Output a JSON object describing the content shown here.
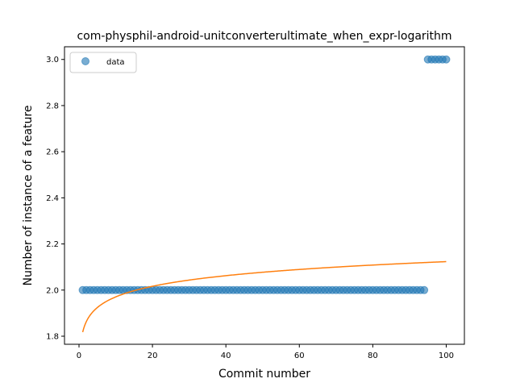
{
  "chart_data": {
    "type": "scatter",
    "title": "com-physphil-android-unitconverterultimate_when_expr-logarithm",
    "xlabel": "Commit number",
    "ylabel": "Number of instance of a feature",
    "xlim": [
      -3.95,
      104.95
    ],
    "ylim": [
      1.765,
      3.055
    ],
    "xticks": [
      0,
      20,
      40,
      60,
      80,
      100
    ],
    "xtick_labels": [
      "0",
      "20",
      "40",
      "60",
      "80",
      "100"
    ],
    "yticks": [
      1.8,
      2.0,
      2.2,
      2.4,
      2.6,
      2.8,
      3.0
    ],
    "ytick_labels": [
      "1.8",
      "2.0",
      "2.2",
      "2.4",
      "2.6",
      "2.8",
      "3.0"
    ],
    "grid": false,
    "legend_position": "top-left",
    "series": [
      {
        "name": "data",
        "kind": "scatter",
        "color": "#1f77b4",
        "segments": [
          {
            "x_from": 1,
            "x_to": 94,
            "y": 2.0
          },
          {
            "x_from": 95,
            "x_to": 100,
            "y": 3.0
          }
        ]
      },
      {
        "kind": "line",
        "color": "#ff7f0e",
        "fit": "logarithmic",
        "a": 1.8175,
        "b": 0.0664,
        "x_from": 1,
        "x_to": 100
      }
    ]
  }
}
